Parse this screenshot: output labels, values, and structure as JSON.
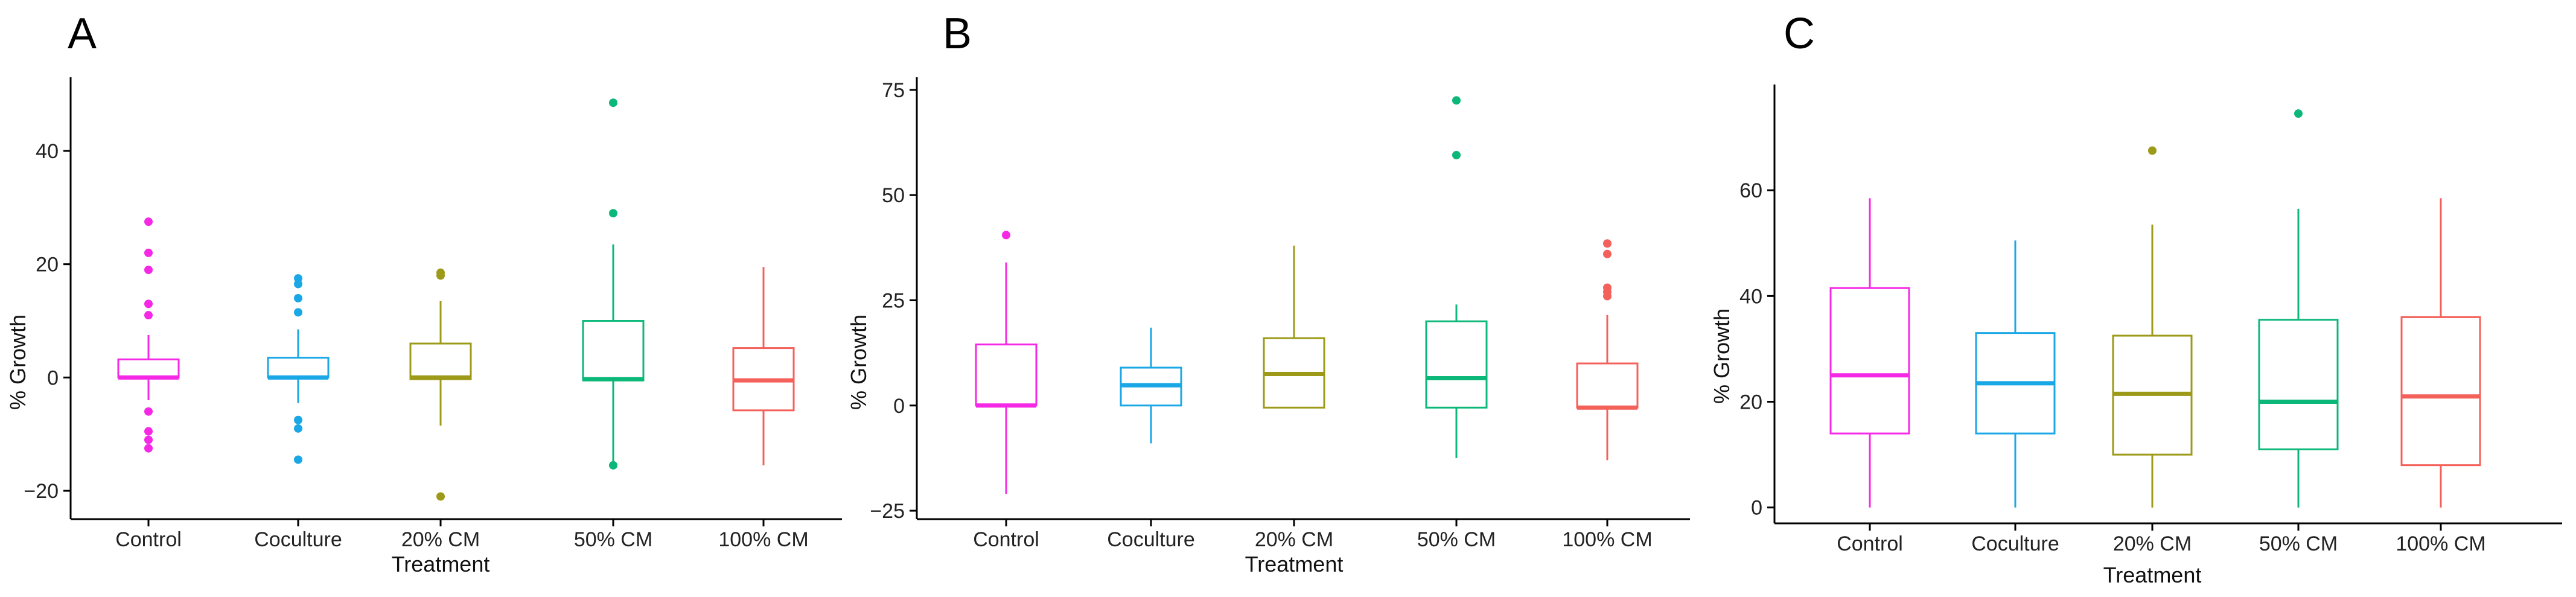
{
  "figure": {
    "colors": {
      "Control": "#f528e6",
      "Coculture": "#1aa7e6",
      "20% CM": "#9c9a18",
      "50% CM": "#0cb77a",
      "100% CM": "#f4605a"
    }
  },
  "chart_data": [
    {
      "type": "box",
      "panel": "A",
      "title": "",
      "xlabel": "Treatment",
      "ylabel": "% Growth",
      "categories": [
        "Control",
        "Coculture",
        "20% CM",
        "50% CM",
        "100% CM"
      ],
      "ylim": [
        -25,
        53
      ],
      "yticks": [
        -20,
        0,
        20,
        40
      ],
      "ytick_labels": [
        "−20",
        "0",
        "20",
        "40"
      ],
      "boxes": [
        {
          "category": "Control",
          "min": -4,
          "q1": 0,
          "median": 0,
          "q3": 3.2,
          "max": 7.5,
          "outliers": [
            27.5,
            22,
            19,
            13,
            11,
            -6,
            -9.5,
            -11,
            -12.5
          ]
        },
        {
          "category": "Coculture",
          "min": -4.5,
          "q1": 0,
          "median": 0,
          "q3": 3.5,
          "max": 8.5,
          "outliers": [
            17.5,
            16.5,
            14,
            11.5,
            -7.5,
            -9,
            -14.5
          ]
        },
        {
          "category": "20% CM",
          "min": -8.5,
          "q1": -0.3,
          "median": 0,
          "q3": 6,
          "max": 13.5,
          "outliers": [
            18.5,
            18,
            -21
          ]
        },
        {
          "category": "50% CM",
          "min": -15.5,
          "q1": -0.5,
          "median": -0.3,
          "q3": 10,
          "max": 23.5,
          "outliers": [
            48.5,
            29,
            -15.5
          ]
        },
        {
          "category": "100% CM",
          "min": -15.5,
          "q1": -5.8,
          "median": -0.5,
          "q3": 5.2,
          "max": 19.5,
          "outliers": []
        }
      ]
    },
    {
      "type": "box",
      "panel": "B",
      "title": "",
      "xlabel": "Treatment",
      "ylabel": "% Growth",
      "categories": [
        "Control",
        "Coculture",
        "20% CM",
        "50% CM",
        "100% CM"
      ],
      "ylim": [
        -27,
        78
      ],
      "yticks": [
        -25,
        0,
        25,
        50,
        75
      ],
      "ytick_labels": [
        "−25",
        "0",
        "25",
        "50",
        "75"
      ],
      "boxes": [
        {
          "category": "Control",
          "min": -21,
          "q1": 0,
          "median": 0,
          "q3": 14.5,
          "max": 34,
          "outliers": [
            40.5
          ]
        },
        {
          "category": "Coculture",
          "min": -9,
          "q1": 0,
          "median": 4.8,
          "q3": 9,
          "max": 18.5,
          "outliers": []
        },
        {
          "category": "20% CM",
          "min": -0.5,
          "q1": -0.5,
          "median": 7.5,
          "q3": 16,
          "max": 38,
          "outliers": []
        },
        {
          "category": "50% CM",
          "min": -12.5,
          "q1": -0.5,
          "median": 6.5,
          "q3": 20,
          "max": 24,
          "outliers": [
            72.5,
            59.5
          ]
        },
        {
          "category": "100% CM",
          "min": -13,
          "q1": -0.5,
          "median": -0.5,
          "q3": 10,
          "max": 21.5,
          "outliers": [
            38.5,
            36,
            28,
            27,
            26
          ]
        }
      ]
    },
    {
      "type": "box",
      "panel": "C",
      "title": "",
      "xlabel": "Treatment",
      "ylabel": "% Growth",
      "categories": [
        "Control",
        "Coculture",
        "20% CM",
        "50% CM",
        "100% CM"
      ],
      "ylim": [
        -3,
        80
      ],
      "yticks": [
        0,
        20,
        40,
        60
      ],
      "ytick_labels": [
        "0",
        "20",
        "40",
        "60"
      ],
      "boxes": [
        {
          "category": "Control",
          "min": 0,
          "q1": 14,
          "median": 25,
          "q3": 41.5,
          "max": 58.5,
          "outliers": []
        },
        {
          "category": "Coculture",
          "min": 0,
          "q1": 14,
          "median": 23.5,
          "q3": 33,
          "max": 50.5,
          "outliers": []
        },
        {
          "category": "20% CM",
          "min": 0,
          "q1": 10,
          "median": 21.5,
          "q3": 32.5,
          "max": 53.5,
          "outliers": [
            67.5
          ]
        },
        {
          "category": "50% CM",
          "min": 0,
          "q1": 11,
          "median": 20,
          "q3": 35.5,
          "max": 56.5,
          "outliers": [
            74.5
          ]
        },
        {
          "category": "100% CM",
          "min": 0,
          "q1": 8,
          "median": 21,
          "q3": 36,
          "max": 58.5,
          "outliers": []
        }
      ]
    }
  ]
}
